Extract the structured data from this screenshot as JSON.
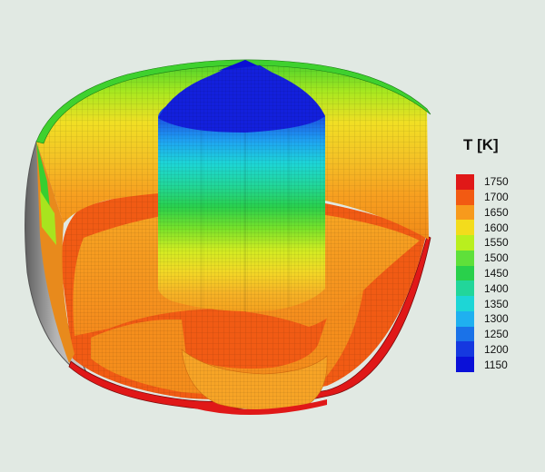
{
  "colorbar": {
    "title": "T [K]",
    "ticks": [
      "1750",
      "1700",
      "1650",
      "1600",
      "1550",
      "1500",
      "1450",
      "1400",
      "1350",
      "1300",
      "1250",
      "1200",
      "1150"
    ],
    "colors": [
      "#e01818",
      "#f25a12",
      "#f79a1c",
      "#f3dc1c",
      "#b9ef1e",
      "#5fe03a",
      "#29d04b",
      "#22d69a",
      "#1dd6d6",
      "#1fb0f0",
      "#1a72e8",
      "#1538e0",
      "#0a10d8"
    ]
  }
}
